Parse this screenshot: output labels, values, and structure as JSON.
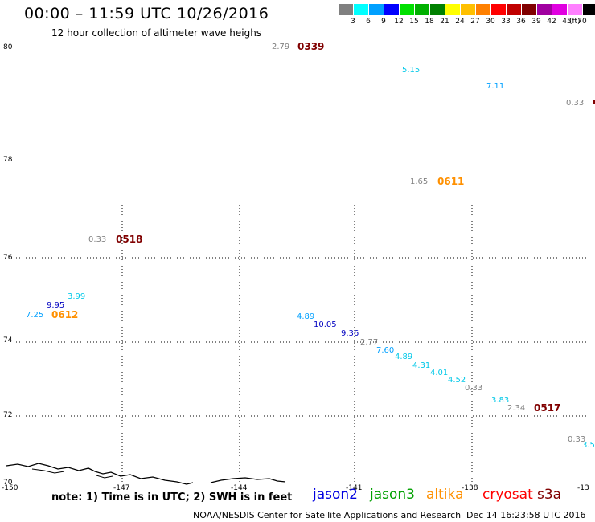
{
  "header": {
    "title": "00:00 – 11:59 UTC 10/26/2016",
    "subtitle": "12 hour collection of altimeter wave heighs"
  },
  "legend": {
    "unit": "(ft)",
    "bins": [
      {
        "label": "3",
        "color": "#808080"
      },
      {
        "label": "6",
        "color": "#00ffff"
      },
      {
        "label": "9",
        "color": "#00a0ff"
      },
      {
        "label": "12",
        "color": "#0000ff"
      },
      {
        "label": "15",
        "color": "#00e000"
      },
      {
        "label": "18",
        "color": "#00b000"
      },
      {
        "label": "21",
        "color": "#008000"
      },
      {
        "label": "24",
        "color": "#ffff00"
      },
      {
        "label": "27",
        "color": "#ffc000"
      },
      {
        "label": "30",
        "color": "#ff8000"
      },
      {
        "label": "33",
        "color": "#ff0000"
      },
      {
        "label": "36",
        "color": "#c00000"
      },
      {
        "label": "39",
        "color": "#800000"
      },
      {
        "label": "42",
        "color": "#a000a0"
      },
      {
        "label": "45",
        "color": "#e000e0"
      },
      {
        "label": "70",
        "color": "#ff80ff"
      },
      {
        "label": "",
        "color": "#000000"
      }
    ]
  },
  "axes": {
    "y_labels": [
      "80",
      "78",
      "76",
      "74",
      "72",
      "70"
    ],
    "x_labels": [
      "-150",
      "-147",
      "-144",
      "-141",
      "-138",
      "-13"
    ]
  },
  "observations": [
    {
      "text": "2.79",
      "color": "#808080"
    },
    {
      "text": "5.15",
      "color": "#00c8e8"
    },
    {
      "text": "7.11",
      "color": "#00a0ff"
    },
    {
      "text": "0.33",
      "color": "#808080"
    },
    {
      "text": "1.65",
      "color": "#808080"
    },
    {
      "text": "0.33",
      "color": "#808080"
    },
    {
      "text": "3.99",
      "color": "#00c8e8"
    },
    {
      "text": "9.95",
      "color": "#0000c0"
    },
    {
      "text": "7.25",
      "color": "#00a0ff"
    },
    {
      "text": "4.89",
      "color": "#00a0ff"
    },
    {
      "text": "10.05",
      "color": "#0000c0"
    },
    {
      "text": "9.36",
      "color": "#0000c0"
    },
    {
      "text": "2.77",
      "color": "#808080"
    },
    {
      "text": "7.60",
      "color": "#00a0ff"
    },
    {
      "text": "4.89",
      "color": "#00c8e8"
    },
    {
      "text": "4.31",
      "color": "#00c8e8"
    },
    {
      "text": "4.01",
      "color": "#00c8e8"
    },
    {
      "text": "4.52",
      "color": "#00c8e8"
    },
    {
      "text": "0.33",
      "color": "#808080"
    },
    {
      "text": "3.83",
      "color": "#00c8e8"
    },
    {
      "text": "2.34",
      "color": "#808080"
    },
    {
      "text": "0.33",
      "color": "#808080"
    },
    {
      "text": "3.5",
      "color": "#00c8e8"
    }
  ],
  "passes": [
    {
      "time": "0339",
      "color": "#800000"
    },
    {
      "time": "0611",
      "color": "#ff9000"
    },
    {
      "time": "0518",
      "color": "#800000"
    },
    {
      "time": "0612",
      "color": "#ff9000"
    },
    {
      "time": "0517",
      "color": "#800000"
    }
  ],
  "footer": {
    "note": "note: 1) Time is in UTC; 2) SWH is in feet",
    "satellites": [
      {
        "name": "jason2",
        "color": "#0000e0"
      },
      {
        "name": "jason3",
        "color": "#00a000"
      },
      {
        "name": "altika",
        "color": "#ff9000"
      },
      {
        "name": "cryosat",
        "color": "#ff0000"
      },
      {
        "name": "s3a",
        "color": "#800000"
      }
    ],
    "credit": "NOAA/NESDIS Center for Satellite Applications and Research",
    "timestamp": "Dec 14 16:23:58 UTC 2016"
  }
}
